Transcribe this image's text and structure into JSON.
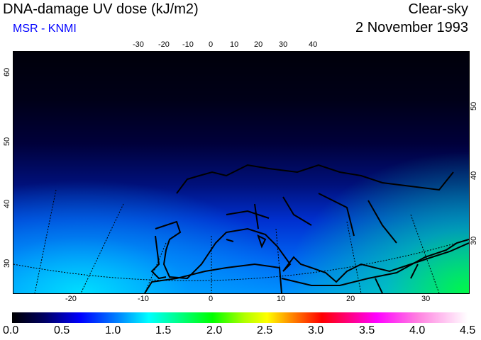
{
  "header": {
    "title": "DNA-damage UV dose (kJ/m2)",
    "source": "MSR - KNMI",
    "condition": "Clear-sky",
    "date": "2 November 1993"
  },
  "axes": {
    "top_lon": [
      "-30",
      "-20",
      "-10",
      "0",
      "10",
      "20",
      "30",
      "40"
    ],
    "bottom_lon": [
      "-20",
      "-10",
      "0",
      "10",
      "20",
      "30"
    ],
    "left_lat": [
      "60",
      "50",
      "40",
      "30"
    ],
    "right_lat": [
      "50",
      "40",
      "30"
    ]
  },
  "colorbar": {
    "labels": [
      "0.0",
      "0.5",
      "1.0",
      "1.5",
      "2.0",
      "2.5",
      "3.0",
      "3.5",
      "4.0",
      "4.5"
    ],
    "colors": [
      "#000000",
      "#0000ff",
      "#0090ff",
      "#00ffff",
      "#00ff00",
      "#ffff00",
      "#ff0000",
      "#ff00ff",
      "#ff80e0",
      "#ffffff"
    ]
  }
}
